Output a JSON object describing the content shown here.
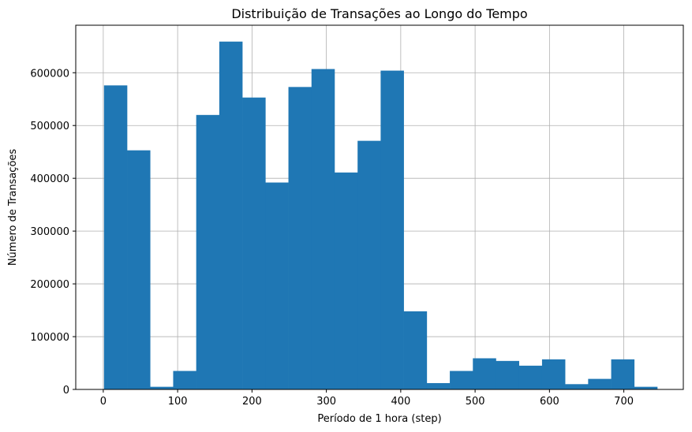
{
  "chart_data": {
    "type": "bar",
    "title": "Distribuição de Transações ao Longo do Tempo",
    "xlabel": "Período de 1 hora (step)",
    "ylabel": "Número de Transações",
    "xlim": [
      -37,
      780
    ],
    "ylim": [
      0,
      690000
    ],
    "grid": true,
    "bar_color": "#1f77b4",
    "bin_width": 31,
    "bins": [
      {
        "start": 1,
        "value": 576000
      },
      {
        "start": 32,
        "value": 453000
      },
      {
        "start": 63,
        "value": 5000
      },
      {
        "start": 94,
        "value": 35000
      },
      {
        "start": 125,
        "value": 520000
      },
      {
        "start": 156,
        "value": 659000
      },
      {
        "start": 187,
        "value": 553000
      },
      {
        "start": 218,
        "value": 392000
      },
      {
        "start": 249,
        "value": 573000
      },
      {
        "start": 280,
        "value": 607000
      },
      {
        "start": 311,
        "value": 411000
      },
      {
        "start": 342,
        "value": 471000
      },
      {
        "start": 373,
        "value": 604000
      },
      {
        "start": 404,
        "value": 148000
      },
      {
        "start": 435,
        "value": 12000
      },
      {
        "start": 466,
        "value": 35000
      },
      {
        "start": 497,
        "value": 59000
      },
      {
        "start": 528,
        "value": 54000
      },
      {
        "start": 559,
        "value": 45000
      },
      {
        "start": 590,
        "value": 57000
      },
      {
        "start": 621,
        "value": 10000
      },
      {
        "start": 652,
        "value": 20000
      },
      {
        "start": 683,
        "value": 57000
      },
      {
        "start": 714,
        "value": 5000
      }
    ],
    "x_ticks": [
      0,
      100,
      200,
      300,
      400,
      500,
      600,
      700
    ],
    "x_tick_labels": [
      "0",
      "100",
      "200",
      "300",
      "400",
      "500",
      "600",
      "700"
    ],
    "y_ticks": [
      0,
      100000,
      200000,
      300000,
      400000,
      500000,
      600000
    ],
    "y_tick_labels": [
      "0",
      "100000",
      "200000",
      "300000",
      "400000",
      "500000",
      "600000"
    ]
  }
}
